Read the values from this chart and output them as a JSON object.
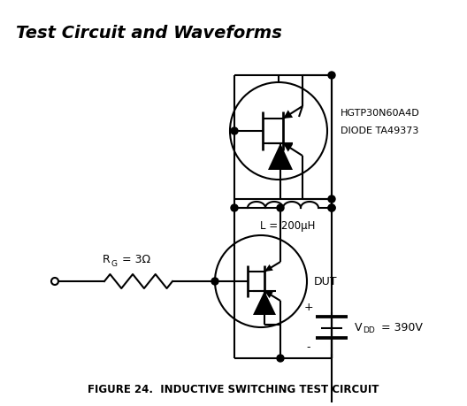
{
  "title": "Test Circuit and Waveforms",
  "figure_caption": "FIGURE 24.  INDUCTIVE SWITCHING TEST CIRCUIT",
  "label_HGTP": "HGTP30N60A4D",
  "label_DIODE": "DIODE TA49373",
  "label_L": "L = 200μH",
  "label_RG": "R",
  "label_RG_sub": "G",
  "label_RG_val": " = 3Ω",
  "label_DUT": "DUT",
  "label_VDD": "V",
  "label_VDD_sub": "DD",
  "label_VDD_val": " = 390V",
  "label_plus": "+",
  "label_minus": "-",
  "bg_color": "#ffffff",
  "line_color": "#000000",
  "title_fontsize": 14,
  "caption_fontsize": 8.5,
  "fig_width": 5.28,
  "fig_height": 4.59
}
